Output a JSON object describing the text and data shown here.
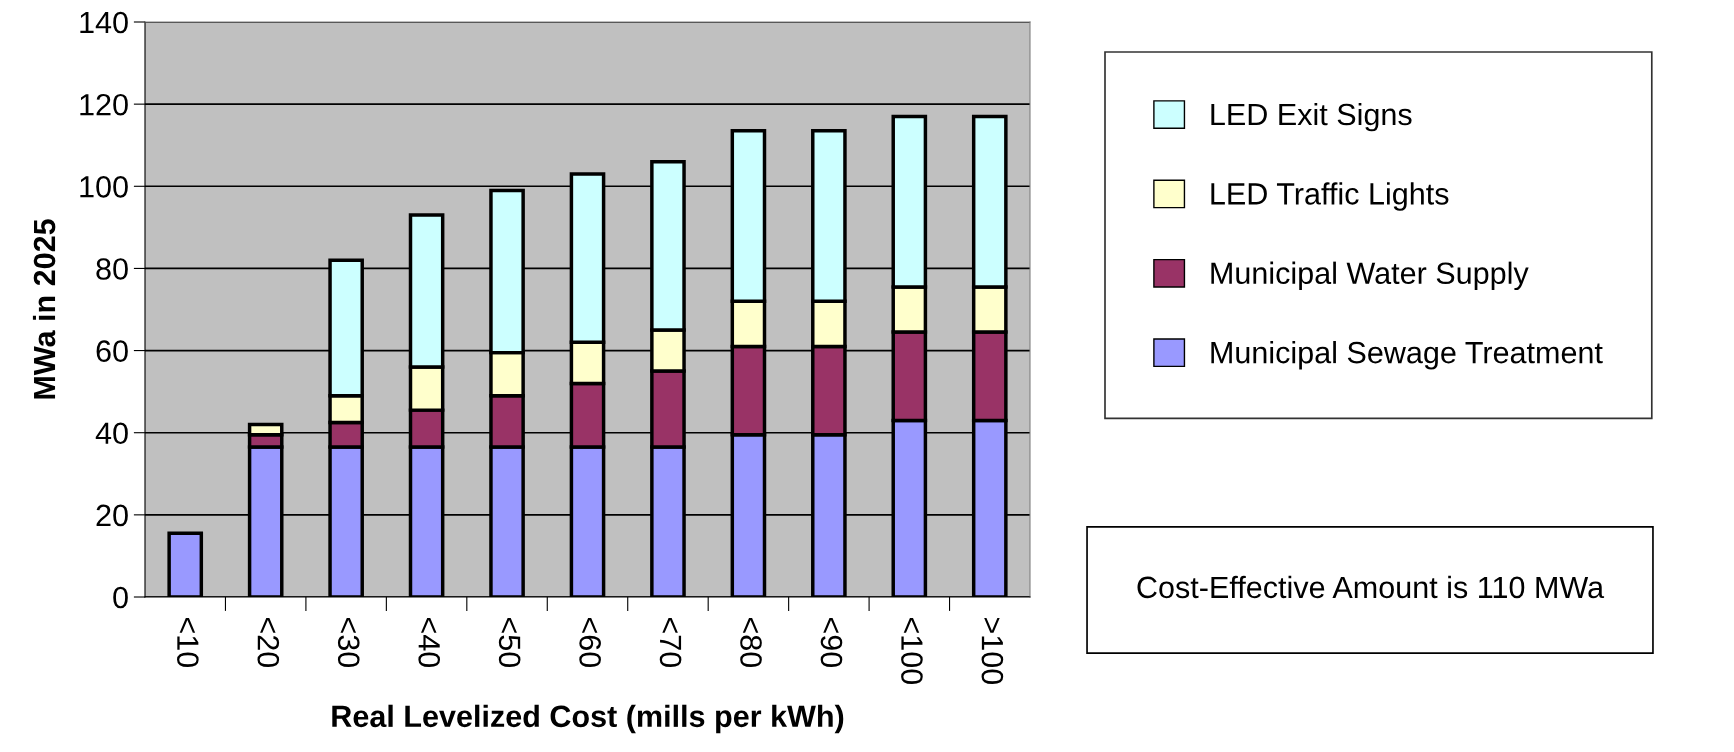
{
  "chart_data": {
    "type": "bar",
    "stacked": true,
    "xlabel": "Real Levelized Cost (mills per kWh)",
    "ylabel": "MWa in 2025",
    "categories": [
      "<10",
      "<20",
      "<30",
      "<40",
      "<50",
      "<60",
      "<70",
      "<80",
      "<90",
      "<100",
      ">100"
    ],
    "series": [
      {
        "name": "Municipal Sewage Treatment",
        "color": "#9999ff",
        "values": [
          15.5,
          36.5,
          36.5,
          36.5,
          36.5,
          36.5,
          36.5,
          39.5,
          39.5,
          43,
          43
        ]
      },
      {
        "name": "Municipal Water Supply",
        "color": "#993366",
        "values": [
          0,
          3,
          6,
          9,
          12.5,
          15.5,
          18.5,
          21.5,
          21.5,
          21.5,
          21.5
        ]
      },
      {
        "name": "LED Traffic Lights",
        "color": "#ffffcc",
        "values": [
          0,
          2.5,
          6.5,
          10.5,
          10.5,
          10,
          10,
          11,
          11,
          11,
          11
        ]
      },
      {
        "name": "LED Exit Signs",
        "color": "#ccffff",
        "values": [
          0,
          0,
          33,
          37,
          39.5,
          41,
          41,
          41.5,
          41.5,
          41.5,
          41.5
        ]
      }
    ],
    "ylim": [
      0,
      140
    ],
    "yticks": [
      0,
      20,
      40,
      60,
      80,
      100,
      120,
      140
    ],
    "grid": "y",
    "legend": "right",
    "annotations": [
      "Cost-Effective Amount is 110 MWa"
    ]
  }
}
